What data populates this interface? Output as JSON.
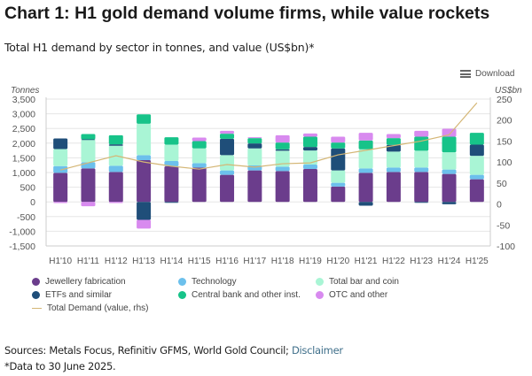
{
  "header": {
    "title": "Chart 1: H1 gold demand volume firms, while value rockets",
    "subtitle": "Total H1 demand by sector in tonnes, and value (US$bn)*",
    "download_label": "Download"
  },
  "footer": {
    "sources_text": "Sources: Metals Focus, Refinitiv GFMS, World Gold Council; ",
    "disclaimer_link": "Disclaimer",
    "note": "*Data to 30 June 2025."
  },
  "chart_data": {
    "type": "bar",
    "stacked": true,
    "title": "Chart 1: H1 gold demand volume firms, while value rockets",
    "subtitle": "Total H1 demand by sector in tonnes, and value (US$bn)*",
    "ylabel": "Tonnes",
    "y2label": "US$bn",
    "ylim": [
      -1500,
      3500
    ],
    "y2lim": [
      -100,
      250
    ],
    "yticks": [
      "3,500",
      "3,000",
      "2,500",
      "2,000",
      "1,500",
      "1,000",
      "500",
      "0",
      "-500",
      "-1,000",
      "-1,500"
    ],
    "y2ticks": [
      "250",
      "200",
      "150",
      "100",
      "50",
      "0",
      "-50",
      "-100"
    ],
    "grid": true,
    "legend_position": "bottom",
    "categories": [
      "H1'10",
      "H1'11",
      "H1'12",
      "H1'13",
      "H1'14",
      "H1'15",
      "H1'16",
      "H1'17",
      "H1'18",
      "H1'19",
      "H1'20",
      "H1'21",
      "H1'22",
      "H1'23",
      "H1'24",
      "H1'25"
    ],
    "series": [
      {
        "name": "Jewellery fabrication",
        "color": "#6b3d8c",
        "values": [
          990,
          1140,
          1020,
          1420,
          1210,
          1170,
          920,
          1070,
          1050,
          1120,
          520,
          990,
          1020,
          1020,
          950,
          770
        ]
      },
      {
        "name": "Technology",
        "color": "#6cc0ec",
        "values": [
          230,
          210,
          210,
          170,
          180,
          150,
          150,
          170,
          150,
          150,
          130,
          150,
          150,
          150,
          150,
          150
        ]
      },
      {
        "name": "Total bar and coin",
        "color": "#a9f5d5",
        "values": [
          580,
          770,
          680,
          1070,
          560,
          500,
          520,
          580,
          540,
          480,
          420,
          650,
          540,
          570,
          590,
          650
        ]
      },
      {
        "name": "ETFs and similar",
        "color": "#1f4e79",
        "values": [
          360,
          10,
          50,
          -610,
          -30,
          0,
          560,
          170,
          50,
          120,
          750,
          -130,
          230,
          -30,
          -80,
          380
        ]
      },
      {
        "name": "Central bank and other inst.",
        "color": "#17c389",
        "values": [
          0,
          180,
          310,
          320,
          250,
          250,
          170,
          180,
          230,
          350,
          200,
          300,
          230,
          480,
          530,
          400
        ]
      },
      {
        "name": "OTC and other",
        "color": "#d88aef",
        "values": [
          -40,
          -150,
          -40,
          -300,
          0,
          120,
          100,
          30,
          250,
          110,
          200,
          260,
          140,
          200,
          270,
          0
        ]
      }
    ],
    "line_series": {
      "name": "Total Demand (value, rhs)",
      "color": "#d4b675",
      "axis": "right",
      "values": [
        81,
        98,
        115,
        100,
        90,
        83,
        94,
        88,
        96,
        98,
        117,
        128,
        139,
        150,
        165,
        241
      ]
    }
  }
}
